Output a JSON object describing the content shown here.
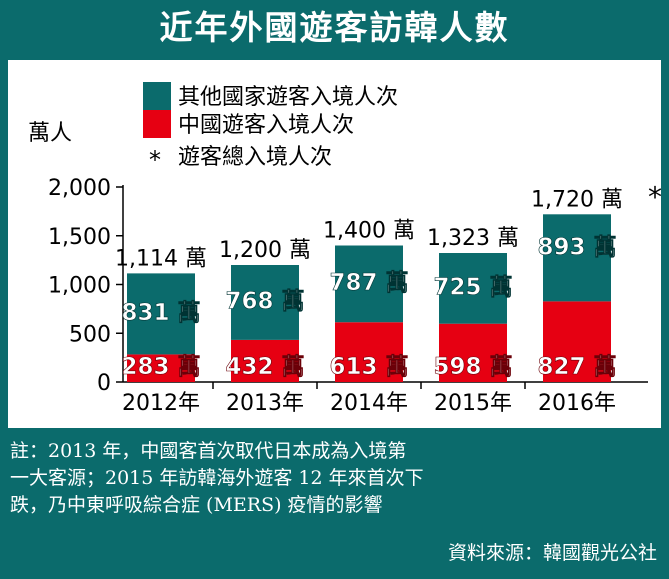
{
  "title": "近年外國遊客訪韓人數",
  "chart_data": {
    "type": "bar",
    "categories": [
      "2012年",
      "2013年",
      "2014年",
      "2015年",
      "2016年"
    ],
    "series": [
      {
        "name": "中國遊客入境人次",
        "values": [
          283,
          432,
          613,
          598,
          827
        ],
        "color": "#e60012"
      },
      {
        "name": "其他國家遊客入境人次",
        "values": [
          831,
          768,
          787,
          725,
          893
        ],
        "color": "#0b6b6c"
      }
    ],
    "totals": [
      1114,
      1200,
      1400,
      1323,
      1720
    ],
    "total_labels": [
      "1,114 萬",
      "1,200 萬",
      "1,400 萬",
      "1,323 萬",
      "1,720 萬"
    ],
    "china_labels": [
      "283 萬",
      "432 萬",
      "613 萬",
      "598 萬",
      "827 萬"
    ],
    "other_labels": [
      "831 萬",
      "768 萬",
      "787 萬",
      "725 萬",
      "893 萬"
    ],
    "total_series_name": "遊客總入境人次",
    "total_marker": "*",
    "ylabel": "萬人",
    "ylim": [
      0,
      2000
    ],
    "yticks": [
      0,
      500,
      1000,
      1500,
      2000
    ],
    "ytick_labels": [
      "0",
      "500",
      "1,000",
      "1,500",
      "2,000"
    ],
    "legend_position": "top-left",
    "grid": false
  },
  "notes": {
    "line1": "註：2013 年，中國客首次取代日本成為入境第",
    "line2": "一大客源；2015 年訪韓海外遊客 12 年來首次下",
    "line3": "跌，乃中東呼吸綜合症 (MERS) 疫情的影響",
    "source": "資料來源：韓國觀光公社"
  }
}
